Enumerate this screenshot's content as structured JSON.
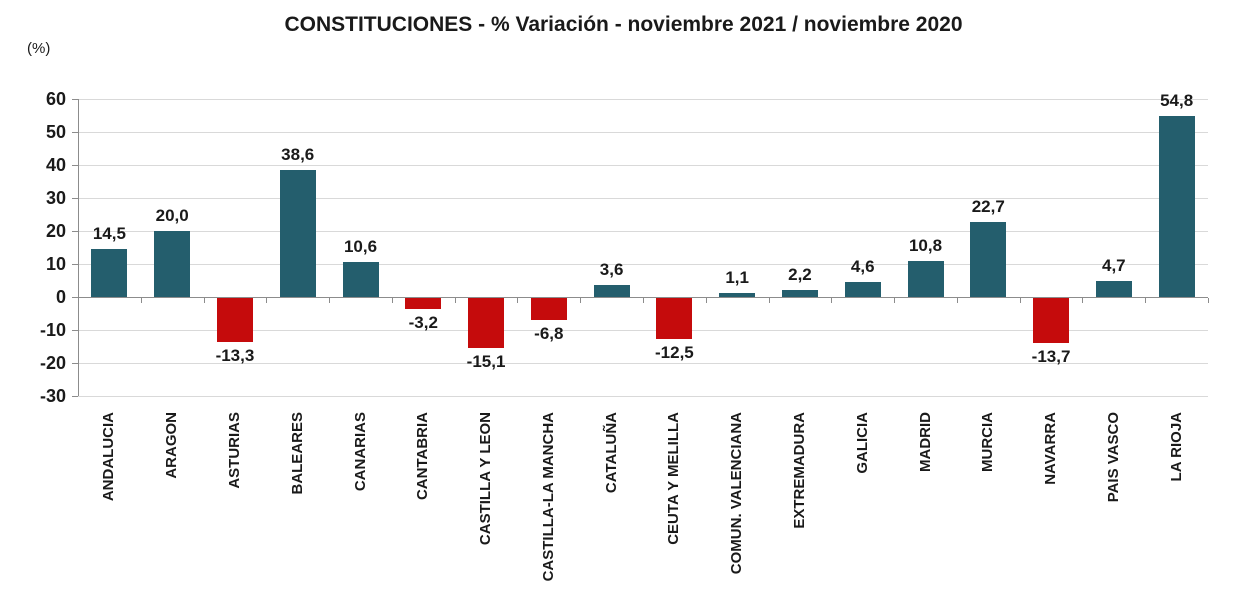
{
  "title": "CONSTITUCIONES - % Variación - noviembre 2021 / noviembre 2020",
  "percent_label": "(%)",
  "colors": {
    "positive_bar": "#245E6D",
    "negative_bar": "#C50B0C",
    "gridline": "#D9D9D9",
    "axis": "#8C8C8C",
    "label_text": "#1A1A1A"
  },
  "chart_data": {
    "type": "bar",
    "title": "CONSTITUCIONES - % Variación - noviembre 2021 / noviembre 2020",
    "categories": [
      "ANDALUCIA",
      "ARAGON",
      "ASTURIAS",
      "BALEARES",
      "CANARIAS",
      "CANTABRIA",
      "CASTILLA Y LEON",
      "CASTILLA-LA MANCHA",
      "CATALUÑA",
      "CEUTA Y MELILLA",
      "COMUN. VALENCIANA",
      "EXTREMADURA",
      "GALICIA",
      "MADRID",
      "MURCIA",
      "NAVARRA",
      "PAIS VASCO",
      "LA RIOJA"
    ],
    "values": [
      14.5,
      20.0,
      -13.3,
      38.6,
      10.6,
      -3.2,
      -15.1,
      -6.8,
      3.6,
      -12.5,
      1.1,
      2.2,
      4.6,
      10.8,
      22.7,
      -13.7,
      4.7,
      54.8
    ],
    "value_labels": [
      "14,5",
      "20,0",
      "-13,3",
      "38,6",
      "10,6",
      "-3,2",
      "-15,1",
      "-6,8",
      "3,6",
      "-12,5",
      "1,1",
      "2,2",
      "4,6",
      "10,8",
      "22,7",
      "-13,7",
      "4,7",
      "54,8"
    ],
    "xlabel": "",
    "ylabel": "(%)",
    "ylim": [
      -30,
      60
    ],
    "yticks": [
      60,
      50,
      40,
      30,
      20,
      10,
      0,
      -10,
      -20,
      -30
    ],
    "ytick_labels": [
      "60",
      "50",
      "40",
      "30",
      "20",
      "10",
      "0",
      "-10",
      "-20",
      "-30"
    ],
    "grid": true,
    "legend": false,
    "color_rule": "positive bars teal, negative bars red"
  }
}
